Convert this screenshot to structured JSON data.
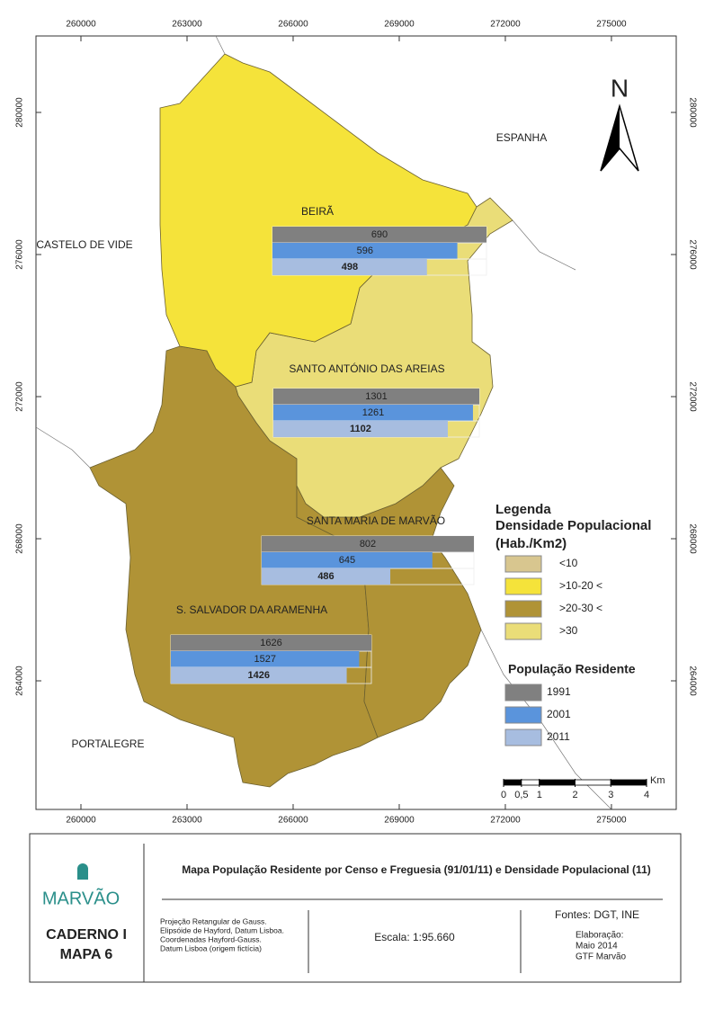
{
  "map": {
    "x_ticks": [
      260000,
      263000,
      266000,
      269000,
      272000,
      275000
    ],
    "y_ticks": [
      264000,
      268000,
      272000,
      276000,
      280000
    ],
    "places": [
      "ESPANHA",
      "CASTELO DE VIDE",
      "PORTALEGRE"
    ],
    "north": "N",
    "parishes": [
      {
        "name": "BEIRÃ",
        "population": [
          690,
          596,
          498
        ]
      },
      {
        "name": "SANTO ANTÓNIO DAS AREIAS",
        "population": [
          1301,
          1261,
          1102
        ]
      },
      {
        "name": "SANTA MARIA DE MARVÃO",
        "population": [
          802,
          645,
          486
        ]
      },
      {
        "name": "S. SALVADOR DA ARAMENHA",
        "population": [
          1626,
          1527,
          1426
        ]
      }
    ],
    "legend": {
      "title": "Legenda",
      "density_title": "Densidade Populacional",
      "density_unit": "(Hab./Km2)",
      "density_classes": [
        {
          "label": "<10",
          "color": "#d8c68f"
        },
        {
          "label": ">10-20 <",
          "color": "#f5e33a"
        },
        {
          "label": ">20-30 <",
          "color": "#b09336"
        },
        {
          "label": ">30",
          "color": "#eadd78"
        }
      ],
      "population_title": "População Residente",
      "years": [
        {
          "label": "1991",
          "color": "#808080"
        },
        {
          "label": "2001",
          "color": "#5a94dc"
        },
        {
          "label": "2011",
          "color": "#a7bde0"
        }
      ]
    },
    "scale_bar": {
      "ticks": [
        0,
        {
          "value": 0.5,
          "label": "0,5"
        },
        1,
        2,
        3,
        4
      ],
      "unit": "Km"
    }
  },
  "footer": {
    "logo": "MARVÃO",
    "caderno": "CADERNO I",
    "mapa": "MAPA 6",
    "title": "Mapa População Residente por Censo e Freguesia (91/01/11) e Densidade Populacional (11)",
    "projection": [
      "Projeção Retangular de Gauss.",
      "Elipsóide de Hayford, Datum Lisboa.",
      "Coordenadas Hayford-Gauss.",
      "Datum Lisboa (origem fictícia)"
    ],
    "scale": "Escala: 1:95.660",
    "sources": "Fontes: DGT, INE",
    "credits": [
      "Elaboração:",
      "Maio 2014",
      "GTF Marvão"
    ]
  }
}
